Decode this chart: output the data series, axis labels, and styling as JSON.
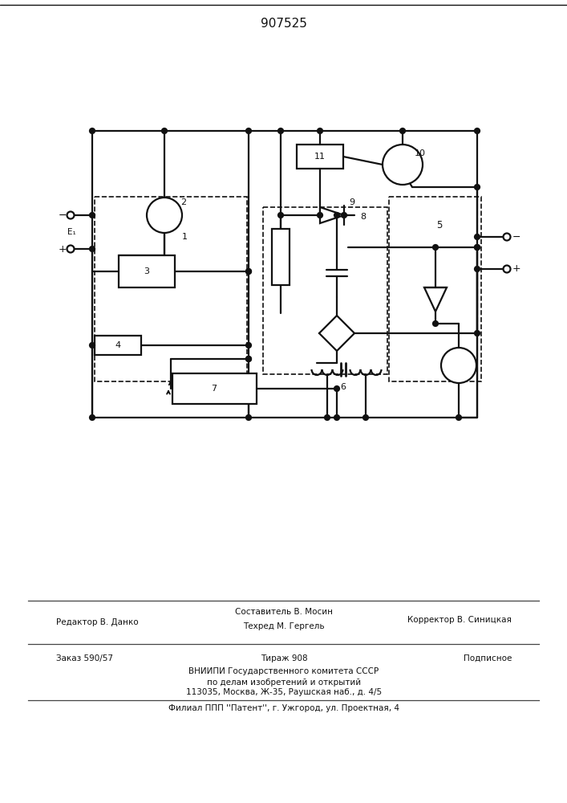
{
  "patent_number": "907525",
  "lw": 1.6,
  "lw_thin": 1.0,
  "footer": {
    "editor": "Редактор В. Данко",
    "compositor": "Составитель В. Мосин",
    "techred": "Техред М. Гергель",
    "corrector": "Корректор В. Синицкая",
    "order": "Заказ 590/57",
    "tirazh": "Тираж 908",
    "podpisnoe": "Подписное",
    "vniipи": "ВНИИПИ Государственного комитета СССР",
    "affairs": "по делам изобретений и открытий",
    "address": "113035, Москва, Ж-35, Раушская наб., д. 4/5",
    "filial": "Филиал ППП ''Патент'', г. Ужгород, ул. Проектная, 4"
  }
}
